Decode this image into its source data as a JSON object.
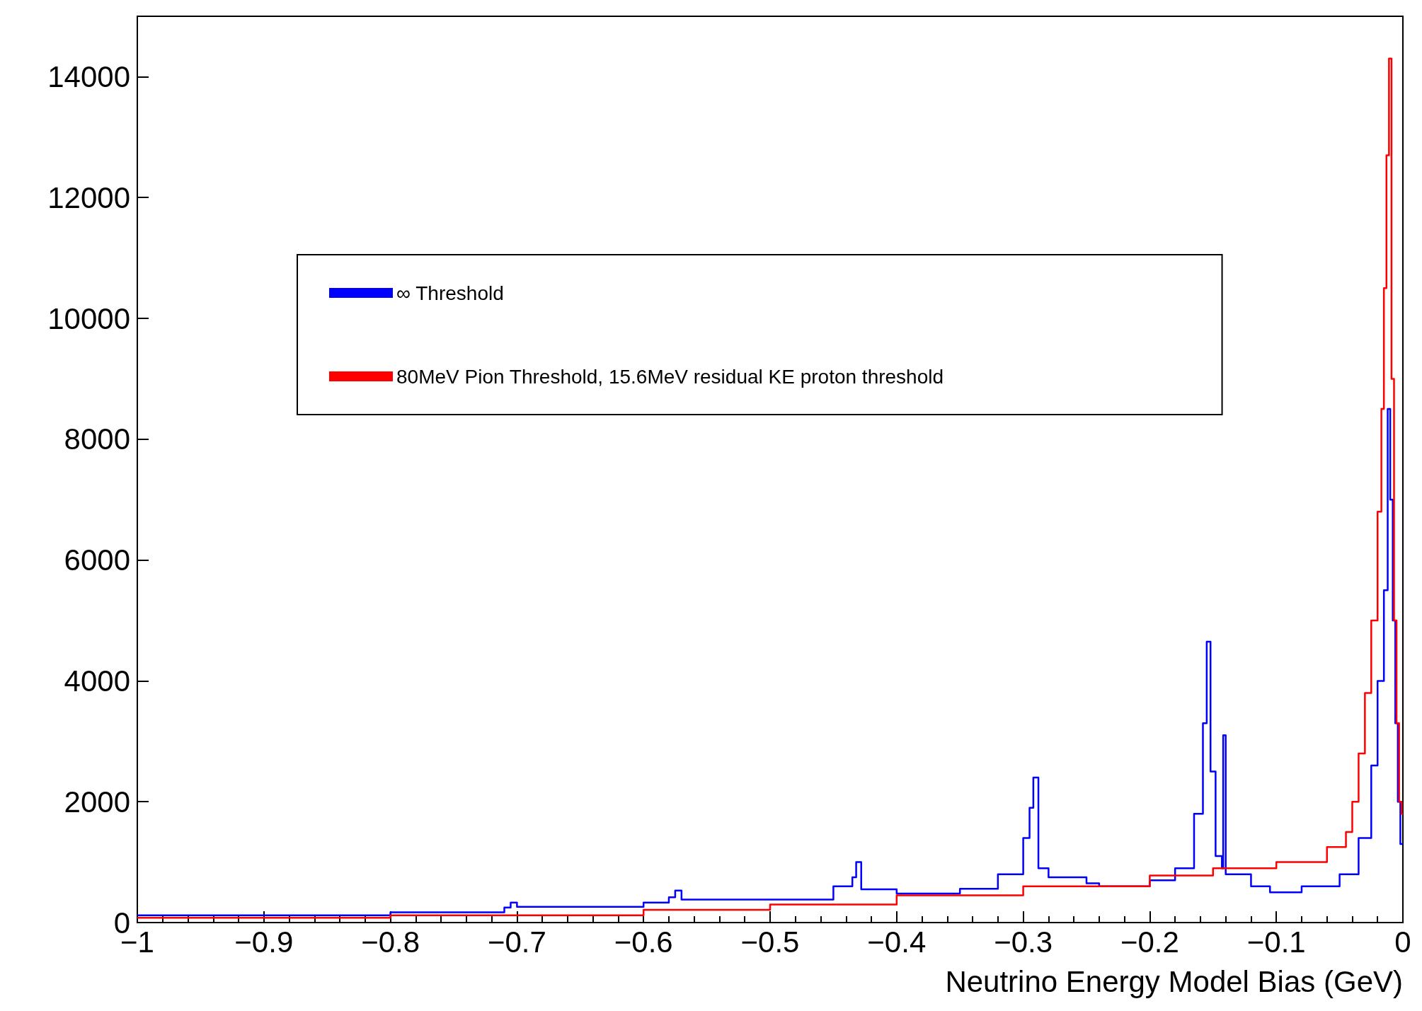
{
  "chart_data": {
    "type": "step",
    "xlabel": "Neutrino Energy Model Bias (GeV)",
    "xlim": [
      -1,
      0
    ],
    "xticks": [
      {
        "value": -1,
        "label": "−1"
      },
      {
        "value": -0.9,
        "label": "−0.9"
      },
      {
        "value": -0.8,
        "label": "−0.8"
      },
      {
        "value": -0.7,
        "label": "−0.7"
      },
      {
        "value": -0.6,
        "label": "−0.6"
      },
      {
        "value": -0.5,
        "label": "−0.5"
      },
      {
        "value": -0.4,
        "label": "−0.4"
      },
      {
        "value": -0.3,
        "label": "−0.3"
      },
      {
        "value": -0.2,
        "label": "−0.2"
      },
      {
        "value": -0.1,
        "label": "−0.1"
      },
      0
    ],
    "ylim": [
      0,
      15000
    ],
    "yticks": [
      0,
      2000,
      4000,
      6000,
      8000,
      10000,
      12000,
      14000
    ],
    "grid": false,
    "legend": "top left",
    "line_style": "solid",
    "marker": "none",
    "series": [
      {
        "name": "∞ Threshold",
        "color": "#0000ff",
        "x": [
          -1,
          -0.8,
          -0.71,
          -0.705,
          -0.7,
          -0.6,
          -0.58,
          -0.575,
          -0.57,
          -0.5,
          -0.45,
          -0.435,
          -0.432,
          -0.428,
          -0.4,
          -0.35,
          -0.32,
          -0.3,
          -0.295,
          -0.292,
          -0.288,
          -0.28,
          -0.25,
          -0.24,
          -0.2,
          -0.18,
          -0.165,
          -0.158,
          -0.155,
          -0.152,
          -0.148,
          -0.143,
          -0.142,
          -0.14,
          -0.12,
          -0.105,
          -0.08,
          -0.05,
          -0.035,
          -0.025,
          -0.02,
          -0.015,
          -0.012,
          -0.01,
          -0.008,
          -0.006,
          -0.004,
          -0.002,
          0
        ],
        "values": [
          120,
          170,
          250,
          330,
          260,
          330,
          420,
          530,
          380,
          380,
          600,
          750,
          1000,
          550,
          480,
          560,
          800,
          1400,
          1900,
          2400,
          900,
          750,
          650,
          600,
          700,
          900,
          1800,
          3300,
          4650,
          2500,
          1100,
          900,
          3100,
          800,
          600,
          500,
          600,
          800,
          1400,
          2600,
          4000,
          5500,
          8500,
          7000,
          5000,
          3300,
          2000,
          1300,
          1300
        ]
      },
      {
        "name": "80MeV Pion Threshold, 15.6MeV residual KE proton threshold",
        "color": "#ff0000",
        "x": [
          -1,
          -0.8,
          -0.6,
          -0.5,
          -0.4,
          -0.3,
          -0.2,
          -0.15,
          -0.1,
          -0.06,
          -0.045,
          -0.04,
          -0.035,
          -0.03,
          -0.025,
          -0.02,
          -0.017,
          -0.015,
          -0.013,
          -0.011,
          -0.009,
          -0.007,
          -0.005,
          -0.003,
          -0.001,
          0
        ],
        "values": [
          80,
          120,
          210,
          300,
          450,
          600,
          780,
          900,
          1000,
          1250,
          1500,
          2000,
          2800,
          3800,
          5000,
          6800,
          8500,
          10500,
          12700,
          14300,
          9000,
          5000,
          3300,
          2000,
          1800,
          1800
        ]
      }
    ]
  }
}
